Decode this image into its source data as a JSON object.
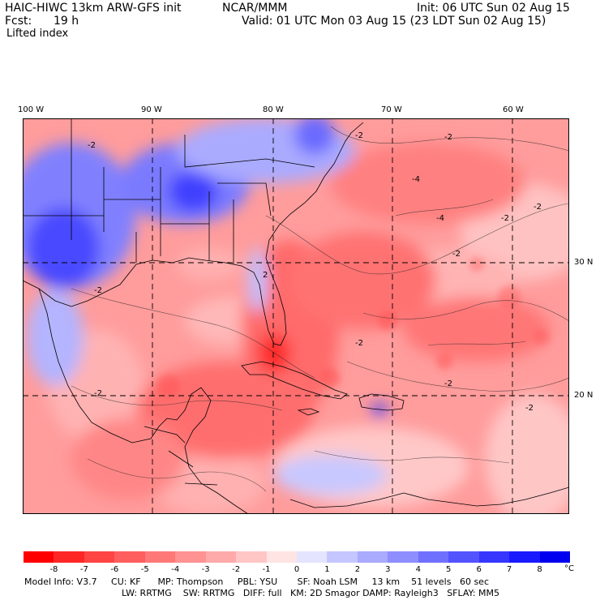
{
  "header": {
    "model": "HAIC-HIWC 13km ARW-GFS init",
    "org": "NCAR/MMM",
    "init": "Init: 06 UTC Sun 02 Aug 15",
    "fcst_label": "Fcst:",
    "fcst_value": "19 h",
    "valid": "Valid: 01 UTC Mon 03 Aug 15 (23 LDT Sun 02 Aug 15)",
    "field": "Lifted index"
  },
  "map": {
    "lon_labels": [
      "100 W",
      "90 W",
      "80 W",
      "70 W",
      "60 W"
    ],
    "lat_labels": [
      "30 N",
      "20 N"
    ],
    "contour_labels": [
      "-2",
      "-2",
      "-2",
      "-2",
      "-2",
      "-2",
      "-2",
      "-2",
      "-2",
      "-4",
      "-4",
      "-2",
      "-2",
      "2"
    ]
  },
  "colorbar": {
    "ticks": [
      "-8",
      "-7",
      "-6",
      "-5",
      "-4",
      "-3",
      "-2",
      "-1",
      "0",
      "1",
      "2",
      "3",
      "4",
      "5",
      "6",
      "7",
      "8"
    ],
    "unit": "°C",
    "colors": [
      "#ff0000",
      "#ff2626",
      "#ff4444",
      "#ff5e5e",
      "#ff7878",
      "#ff9292",
      "#ffaaaa",
      "#ffc6c6",
      "#ffe4e4",
      "#e4e4ff",
      "#c6c6ff",
      "#aaaaff",
      "#8e8eff",
      "#7070ff",
      "#5454ff",
      "#3636ff",
      "#1a1aff",
      "#0000f0"
    ]
  },
  "footer": {
    "line1": "Model Info: V3.7     CU: KF      MP: Thompson     PBL: YSU       SF: Noah LSM     13 km    51 levels   60 sec",
    "line2": "LW: RRTMG    SW: RRTMG   DIFF: full   KM: 2D Smagor DAMP: Rayleigh3   SFLAY: MM5"
  }
}
